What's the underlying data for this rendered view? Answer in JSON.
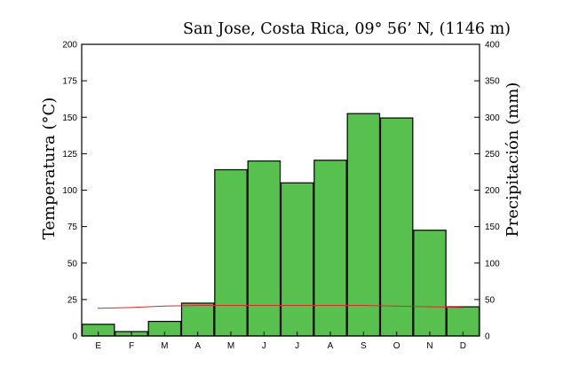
{
  "chart_data": {
    "type": "bar",
    "title": "San Jose, Costa Rica, 09° 56’ N, (1146 m)",
    "ylabel": "Temperatura (°C)",
    "y2label": "Precipitación (mm)",
    "categories": [
      "E",
      "F",
      "M",
      "A",
      "M",
      "J",
      "J",
      "A",
      "S",
      "O",
      "N",
      "D"
    ],
    "ylim": [
      0,
      200
    ],
    "y2lim": [
      0,
      400
    ],
    "yticks": [
      "0",
      "25",
      "50",
      "75",
      "100",
      "125",
      "150",
      "175",
      "200"
    ],
    "y2ticks": [
      "0",
      "50",
      "100",
      "150",
      "200",
      "250",
      "300",
      "350",
      "400"
    ],
    "series": [
      {
        "type": "bar",
        "axis": "right",
        "values": [
          16,
          6,
          20,
          45,
          228,
          240,
          210,
          241,
          305,
          299,
          145,
          40
        ]
      },
      {
        "type": "line",
        "axis": "left",
        "values": [
          19,
          19.5,
          20.5,
          21,
          21,
          21,
          21,
          21,
          21,
          20.5,
          20,
          19.5
        ]
      }
    ],
    "colors": {
      "bar_fill": "#58c04f",
      "bar_stroke": "#000000",
      "line": "#d62b2b"
    },
    "grid": false,
    "legend": "none"
  }
}
